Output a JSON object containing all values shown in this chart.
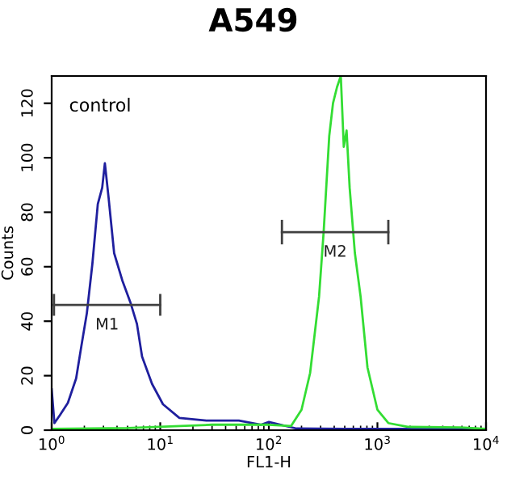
{
  "chart_data": {
    "type": "line",
    "title": "A549",
    "xlabel": "FL1-H",
    "ylabel": "Counts",
    "annotations": [
      "control"
    ],
    "log": "x",
    "xlim": [
      1,
      10000
    ],
    "ylim": [
      0,
      130
    ],
    "xticks": [
      {
        "value": 1,
        "label": "10$^{0}$"
      },
      {
        "value": 10,
        "label": "10$^{1}$"
      },
      {
        "value": 100,
        "label": "10$^{2}$"
      },
      {
        "value": 1000,
        "label": "10$^{3}$"
      },
      {
        "value": 10000,
        "label": "10$^{4}$"
      }
    ],
    "yticks": [
      0,
      20,
      40,
      60,
      80,
      100,
      120
    ],
    "grid": false,
    "legend": false,
    "marker": "none",
    "line_style": "solid",
    "series": [
      {
        "color": "#1f1f9e",
        "x": [
          1,
          1.06,
          1.19,
          1.41,
          1.68,
          1.88,
          2.11,
          2.37,
          2.66,
          2.92,
          3.09,
          3.35,
          3.76,
          4.47,
          5.3,
          6.1,
          6.8,
          8.4,
          10.6,
          15,
          26.6,
          53,
          85,
          100,
          180,
          500,
          2000,
          10000
        ],
        "values": [
          15,
          2.6,
          5.5,
          10,
          19,
          31,
          43,
          61,
          83,
          89,
          98,
          85,
          65,
          55,
          47,
          39,
          27,
          17,
          9.5,
          4.5,
          3.5,
          3.5,
          2,
          3,
          0.6,
          0.5,
          0.5,
          0.5
        ]
      },
      {
        "color": "#33dd33",
        "x": [
          1,
          5,
          30,
          100,
          160,
          200,
          240,
          290,
          320,
          360,
          390,
          425,
          460,
          490,
          520,
          555,
          620,
          700,
          810,
          1000,
          1260,
          1900,
          5900,
          10000
        ],
        "values": [
          0.5,
          0.8,
          2,
          2,
          1.5,
          7.5,
          21,
          49,
          73,
          108,
          120,
          126,
          130,
          104,
          110,
          89,
          65,
          49,
          23,
          7.5,
          2.6,
          1.2,
          1,
          0.5
        ]
      },
      {
        "name": "M1",
        "color": "#404040",
        "x": [
          1.05,
          10
        ],
        "values": [
          46,
          46
        ],
        "errors": [
          4,
          4
        ]
      },
      {
        "name": "M2",
        "color": "#404040",
        "x": [
          132,
          1260
        ],
        "values": [
          72.7,
          72.7
        ],
        "errors": [
          4.5,
          4.5
        ]
      }
    ]
  }
}
